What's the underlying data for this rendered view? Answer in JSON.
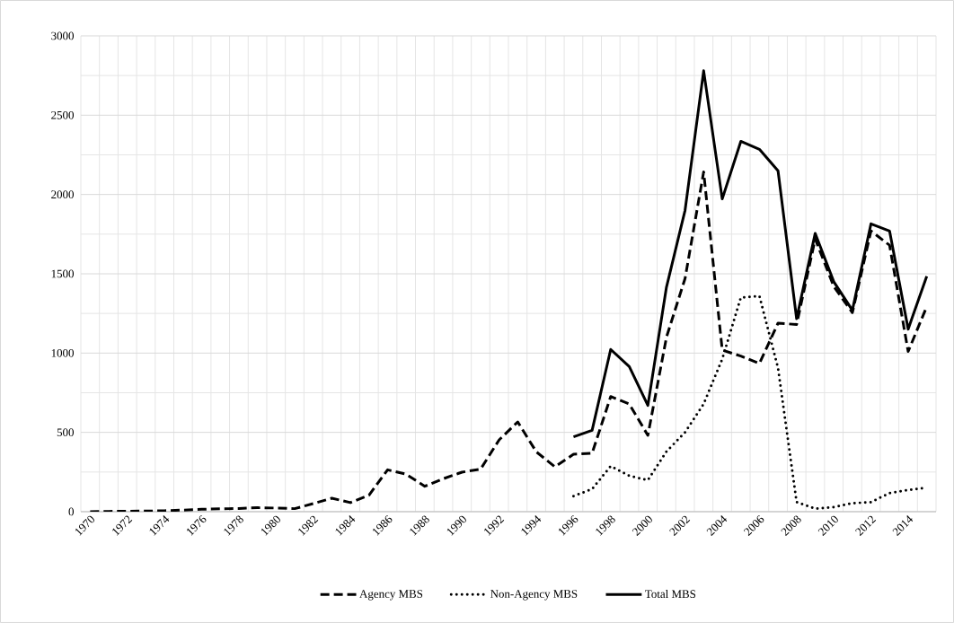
{
  "chart_data": {
    "type": "line",
    "categories": [
      "1970",
      null,
      "1972",
      null,
      "1974",
      null,
      "1976",
      null,
      "1978",
      null,
      "1980",
      null,
      "1982",
      null,
      "1984",
      null,
      "1986",
      null,
      "1988",
      null,
      "1990",
      null,
      "1992",
      null,
      "1994",
      null,
      "1996",
      null,
      "1998",
      null,
      "2000",
      null,
      "2002",
      null,
      "2004",
      null,
      "2006",
      null,
      "2008",
      null,
      "2010",
      null,
      "2012",
      null,
      "2014",
      null
    ],
    "series": [
      {
        "name": "Agency MBS",
        "color": "#000000",
        "line_style": "dashed",
        "values": [
          0,
          2,
          3,
          4,
          6,
          10,
          15,
          18,
          20,
          25,
          23,
          19,
          51,
          85,
          57,
          104,
          264,
          236,
          160,
          208,
          249,
          268,
          453,
          566,
          377,
          283,
          362,
          368,
          726,
          679,
          481,
          1100,
          1470,
          2142,
          1019,
          981,
          934,
          1189,
          1180,
          1720,
          1420,
          1255,
          1770,
          1680,
          1010,
          1293
        ]
      },
      {
        "name": "Non-Agency MBS",
        "color": "#000000",
        "line_style": "dotted",
        "values": [
          null,
          null,
          null,
          null,
          null,
          null,
          null,
          null,
          null,
          null,
          null,
          null,
          null,
          null,
          null,
          null,
          null,
          null,
          null,
          null,
          null,
          null,
          null,
          null,
          null,
          null,
          98,
          142,
          287,
          226,
          198,
          379,
          500,
          679,
          962,
          1350,
          1359,
          906,
          60,
          19,
          28,
          53,
          60,
          117,
          136,
          151
        ]
      },
      {
        "name": "Total MBS",
        "color": "#000000",
        "line_style": "solid",
        "values": [
          null,
          null,
          null,
          null,
          null,
          null,
          null,
          null,
          null,
          null,
          null,
          null,
          null,
          null,
          null,
          null,
          null,
          null,
          null,
          null,
          null,
          null,
          null,
          null,
          null,
          null,
          472,
          513,
          1023,
          915,
          670,
          1416,
          1900,
          2780,
          1972,
          2335,
          2285,
          2150,
          1217,
          1755,
          1450,
          1270,
          1815,
          1770,
          1151,
          1485
        ]
      }
    ],
    "ylim": [
      0,
      3000
    ],
    "yticks": [
      0,
      500,
      1000,
      1500,
      2000,
      2500,
      3000
    ],
    "grid": true,
    "legend": "bottom",
    "marker": "none"
  }
}
